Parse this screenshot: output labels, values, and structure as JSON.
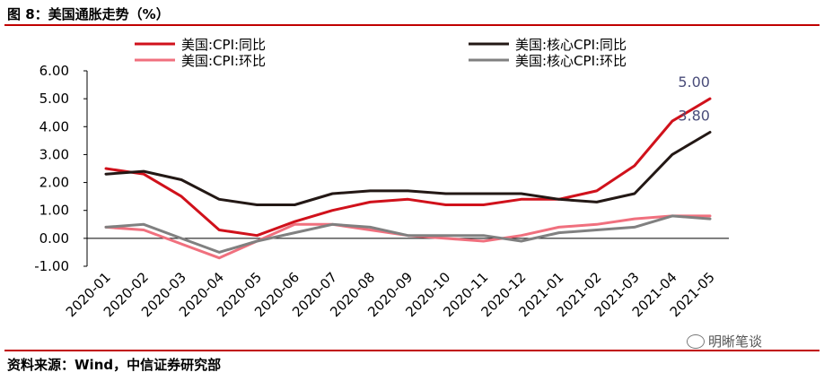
{
  "header": {
    "title": "图 8：美国通胀走势（%）"
  },
  "footer": {
    "source": "资料来源：Wind，中信证券研究部",
    "watermark": "明晰笔谈",
    "watermark_icon": "wechat-icon"
  },
  "chart_data": {
    "type": "line",
    "categories": [
      "2020-01",
      "2020-02",
      "2020-03",
      "2020-04",
      "2020-05",
      "2020-06",
      "2020-07",
      "2020-08",
      "2020-09",
      "2020-10",
      "2020-11",
      "2020-12",
      "2021-01",
      "2021-02",
      "2021-03",
      "2021-04",
      "2021-05"
    ],
    "ylim": [
      -1.0,
      6.0
    ],
    "yticks": [
      "-1.00",
      "0.00",
      "1.00",
      "2.00",
      "3.00",
      "4.00",
      "5.00",
      "6.00"
    ],
    "grid": false,
    "legend_position": "top",
    "series": [
      {
        "name": "美国:CPI:同比",
        "color": "#d0111b",
        "values": [
          2.5,
          2.3,
          1.5,
          0.3,
          0.1,
          0.6,
          1.0,
          1.3,
          1.4,
          1.2,
          1.2,
          1.4,
          1.4,
          1.7,
          2.6,
          4.2,
          5.0
        ]
      },
      {
        "name": "美国:核心CPI:同比",
        "color": "#231815",
        "values": [
          2.3,
          2.4,
          2.1,
          1.4,
          1.2,
          1.2,
          1.6,
          1.7,
          1.7,
          1.6,
          1.6,
          1.6,
          1.4,
          1.3,
          1.6,
          3.0,
          3.8
        ]
      },
      {
        "name": "美国:CPI:环比",
        "color": "#f0707e",
        "values": [
          0.4,
          0.3,
          -0.2,
          -0.7,
          -0.1,
          0.5,
          0.5,
          0.3,
          0.1,
          0.0,
          -0.1,
          0.1,
          0.4,
          0.5,
          0.7,
          0.8,
          0.8
        ]
      },
      {
        "name": "美国:核心CPI:环比",
        "color": "#808080",
        "values": [
          0.4,
          0.5,
          0.0,
          -0.5,
          -0.1,
          0.2,
          0.5,
          0.4,
          0.1,
          0.1,
          0.1,
          -0.1,
          0.2,
          0.3,
          0.4,
          0.8,
          0.7
        ]
      }
    ],
    "annotations": [
      {
        "text": "5.00",
        "series": 0,
        "point": 16,
        "color": "#4a4d7a"
      },
      {
        "text": "3.80",
        "series": 1,
        "point": 16,
        "color": "#4a4d7a"
      }
    ]
  }
}
